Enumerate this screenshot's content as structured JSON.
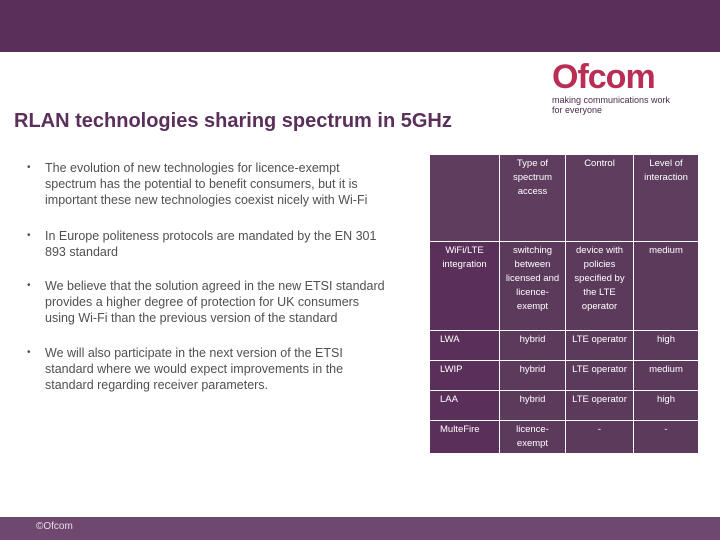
{
  "slide": {
    "title": "RLAN technologies sharing spectrum in 5GHz",
    "footer": "©Ofcom"
  },
  "logo": {
    "name": "Ofcom",
    "tagline_line1": "making communications work",
    "tagline_line2": "for everyone"
  },
  "colors": {
    "brand_purple": "#5a2f5a",
    "brand_red": "#ba2d55"
  },
  "bullets": [
    "The evolution of new technologies for licence-exempt spectrum has the potential to benefit consumers, but it is important these new technologies coexist nicely with Wi-Fi",
    "In Europe politeness protocols are mandated by the EN 301 893 standard",
    "We believe that the solution agreed in the new ETSI standard provides a higher degree of protection for UK consumers using Wi-Fi than the previous version of the standard",
    "We will also participate in the next version of the ETSI standard where we would expect improvements in the standard regarding receiver parameters."
  ],
  "table": {
    "columns": [
      "Type of spectrum access",
      "Control",
      "Level of interaction"
    ],
    "rows": [
      {
        "name": "WiFi/LTE integration",
        "cells": [
          "switching between licensed and licence-exempt",
          "device with policies specified by the LTE operator",
          "medium"
        ]
      },
      {
        "name": "LWA",
        "cells": [
          "hybrid",
          "LTE operator",
          "high"
        ]
      },
      {
        "name": "LWIP",
        "cells": [
          "hybrid",
          "LTE operator",
          "medium"
        ]
      },
      {
        "name": "LAA",
        "cells": [
          "hybrid",
          "LTE operator",
          "high"
        ]
      },
      {
        "name": "MulteFire",
        "cells": [
          "licence-exempt",
          "-",
          "-"
        ]
      }
    ]
  }
}
